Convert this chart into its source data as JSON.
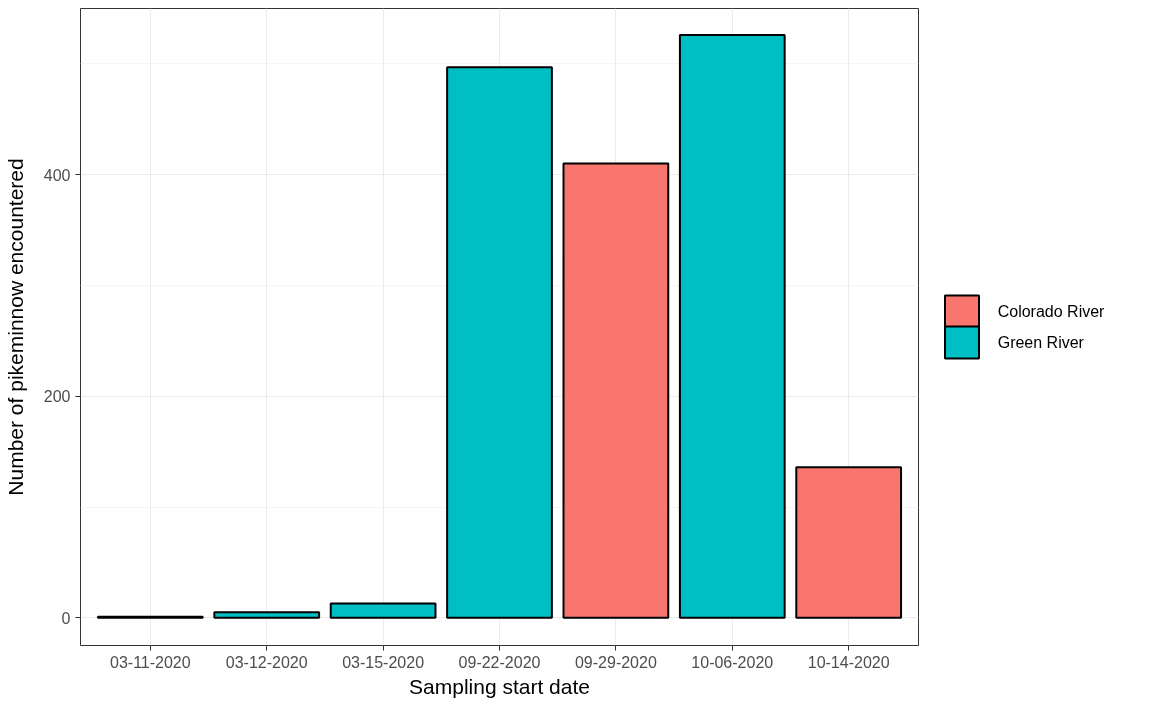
{
  "chart_data": {
    "type": "bar",
    "xlabel": "Sampling start date",
    "ylabel": "Number of pikeminnow encountered",
    "categories": [
      "03-11-2020",
      "03-12-2020",
      "03-15-2020",
      "09-22-2020",
      "09-29-2020",
      "10-06-2020",
      "10-14-2020"
    ],
    "series": [
      {
        "name": "Colorado River",
        "color": "#f8766d",
        "values": [
          null,
          null,
          null,
          null,
          410,
          null,
          136
        ]
      },
      {
        "name": "Green River",
        "color": "#00bfc4",
        "values": [
          1,
          5,
          13,
          497,
          null,
          526,
          null
        ]
      }
    ],
    "ylim": [
      -25,
      550
    ],
    "yticks": [
      0,
      200,
      400
    ],
    "grid": true,
    "legend": "right"
  }
}
